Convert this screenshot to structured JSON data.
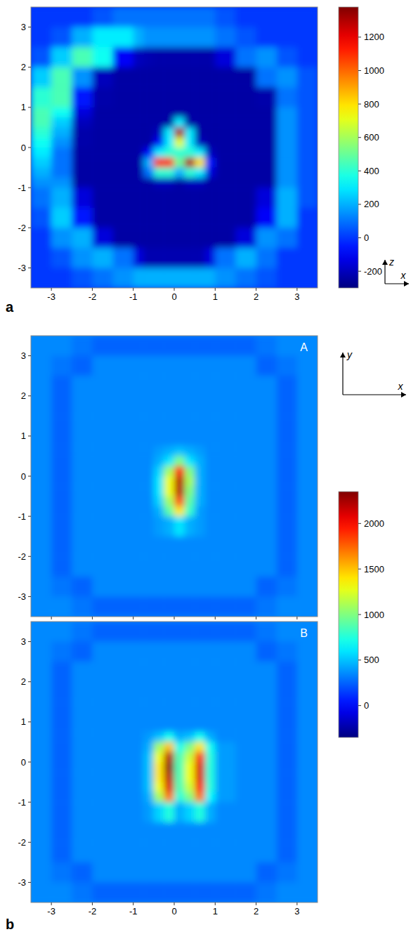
{
  "chart_data": [
    {
      "type": "heatmap",
      "panel_label": "a",
      "x_label": "x",
      "y_label": "z",
      "xlim": [
        -3.5,
        3.5
      ],
      "ylim": [
        -3.5,
        3.5
      ],
      "xticks": [
        -3,
        -2,
        -1,
        0,
        1,
        2,
        3
      ],
      "yticks": [
        -3,
        -2,
        -1,
        0,
        1,
        2,
        3
      ],
      "tick_labels": true,
      "x_edges": [
        -3.5,
        -3,
        -2.5,
        -2,
        -1.5,
        -1,
        -0.75,
        -0.5,
        -0.25,
        0,
        0.25,
        0.5,
        0.75,
        1,
        1.5,
        2,
        2.5,
        3,
        3.5
      ],
      "y_edges": [
        3.5,
        3,
        2.5,
        2,
        1.5,
        1,
        0.75,
        0.5,
        0.25,
        0,
        -0.25,
        -0.5,
        -0.75,
        -1,
        -1.5,
        -2,
        -2.5,
        -3,
        -3.5
      ],
      "values": [
        [
          0,
          0,
          0,
          50,
          100,
          100,
          100,
          100,
          100,
          100,
          100,
          100,
          100,
          50,
          0,
          0,
          0,
          0
        ],
        [
          0,
          50,
          200,
          300,
          300,
          200,
          150,
          150,
          150,
          150,
          150,
          150,
          150,
          100,
          50,
          0,
          0,
          0
        ],
        [
          50,
          250,
          450,
          350,
          -100,
          -200,
          -220,
          -230,
          -230,
          -230,
          -230,
          -230,
          -230,
          -150,
          100,
          150,
          50,
          0
        ],
        [
          250,
          450,
          150,
          -200,
          -240,
          -240,
          -240,
          -240,
          -240,
          -240,
          -240,
          -240,
          -240,
          -240,
          -240,
          100,
          150,
          50
        ],
        [
          400,
          450,
          -50,
          -230,
          -240,
          -240,
          -240,
          -240,
          -240,
          -240,
          -240,
          -240,
          -240,
          -240,
          -240,
          -230,
          100,
          50
        ],
        [
          450,
          350,
          -150,
          -240,
          -240,
          -240,
          -240,
          -240,
          -240,
          -240,
          -240,
          -240,
          -240,
          -240,
          -240,
          -240,
          150,
          50
        ],
        [
          450,
          250,
          -200,
          -240,
          -240,
          -240,
          -240,
          -240,
          -240,
          300,
          -240,
          -240,
          -240,
          -240,
          -240,
          -240,
          150,
          50
        ],
        [
          400,
          200,
          -230,
          -240,
          -240,
          -240,
          -240,
          -200,
          300,
          1300,
          300,
          -240,
          -240,
          -240,
          -240,
          -240,
          150,
          50
        ],
        [
          350,
          150,
          -230,
          -240,
          -240,
          -240,
          -240,
          -100,
          300,
          700,
          300,
          -200,
          -240,
          -240,
          -240,
          -240,
          150,
          50
        ],
        [
          300,
          100,
          -240,
          -240,
          -240,
          -240,
          -100,
          300,
          400,
          400,
          400,
          300,
          -200,
          -240,
          -240,
          -240,
          150,
          50
        ],
        [
          250,
          100,
          -240,
          -240,
          -240,
          -240,
          200,
          1100,
          1100,
          500,
          1300,
          800,
          -50,
          -240,
          -240,
          -240,
          150,
          50
        ],
        [
          200,
          100,
          -240,
          -240,
          -240,
          -240,
          100,
          400,
          400,
          200,
          400,
          300,
          -150,
          -240,
          -240,
          -240,
          150,
          50
        ],
        [
          150,
          150,
          -240,
          -240,
          -240,
          -240,
          -240,
          -200,
          -200,
          -240,
          -200,
          -200,
          -240,
          -240,
          -240,
          -240,
          150,
          50
        ],
        [
          100,
          200,
          -150,
          -240,
          -240,
          -240,
          -240,
          -240,
          -240,
          -240,
          -240,
          -240,
          -240,
          -240,
          -240,
          -150,
          200,
          50
        ],
        [
          50,
          250,
          -50,
          -240,
          -240,
          -240,
          -240,
          -240,
          -240,
          -240,
          -240,
          -240,
          -240,
          -240,
          -240,
          -100,
          200,
          0
        ],
        [
          0,
          150,
          200,
          -150,
          -240,
          -240,
          -240,
          -240,
          -240,
          -240,
          -240,
          -240,
          -240,
          -240,
          -150,
          150,
          100,
          0
        ],
        [
          0,
          50,
          150,
          200,
          100,
          -150,
          -220,
          -220,
          -220,
          -220,
          -220,
          -220,
          -150,
          100,
          200,
          100,
          0,
          0
        ],
        [
          0,
          0,
          50,
          100,
          150,
          200,
          200,
          200,
          200,
          200,
          200,
          200,
          200,
          150,
          100,
          50,
          0,
          0
        ]
      ],
      "colorbar": {
        "range": [
          -300,
          1380
        ],
        "ticks": [
          -200,
          0,
          200,
          400,
          600,
          800,
          1000,
          1200
        ]
      }
    },
    {
      "type": "heatmap",
      "title": "A",
      "panel_label": "b",
      "x_label": "x",
      "y_label": "y",
      "xlim": [
        -3.5,
        3.5
      ],
      "ylim": [
        -3.5,
        3.5
      ],
      "xticks": [
        -3,
        -2,
        -1,
        0,
        1,
        2,
        3
      ],
      "yticks": [
        -3,
        -2,
        -1,
        0,
        1,
        2,
        3
      ],
      "tick_labels": "y",
      "x_edges": [
        -3.5,
        -3,
        -2.5,
        -2,
        -1.5,
        -1,
        -0.75,
        -0.5,
        -0.25,
        0,
        0.25,
        0.5,
        0.75,
        1,
        1.5,
        2,
        2.5,
        3,
        3.5
      ],
      "y_edges": [
        3.5,
        3,
        2.5,
        2,
        1.5,
        1,
        0.75,
        0.5,
        0.25,
        0,
        -0.25,
        -0.5,
        -0.75,
        -1,
        -1.5,
        -2,
        -2.5,
        -3,
        -3.5
      ],
      "values": [
        [
          350,
          350,
          300,
          250,
          250,
          250,
          250,
          250,
          250,
          250,
          250,
          250,
          250,
          250,
          250,
          300,
          350,
          350
        ],
        [
          350,
          300,
          250,
          350,
          350,
          350,
          350,
          350,
          350,
          350,
          350,
          350,
          350,
          350,
          350,
          250,
          300,
          350
        ],
        [
          350,
          250,
          350,
          350,
          350,
          350,
          350,
          350,
          350,
          350,
          350,
          350,
          350,
          350,
          350,
          350,
          250,
          350
        ],
        [
          350,
          250,
          350,
          350,
          350,
          350,
          350,
          350,
          350,
          350,
          350,
          350,
          350,
          350,
          350,
          350,
          250,
          350
        ],
        [
          350,
          250,
          350,
          350,
          350,
          350,
          350,
          350,
          350,
          350,
          350,
          350,
          350,
          350,
          350,
          350,
          250,
          350
        ],
        [
          350,
          250,
          350,
          350,
          350,
          350,
          350,
          350,
          350,
          350,
          350,
          350,
          350,
          350,
          350,
          350,
          250,
          350
        ],
        [
          350,
          250,
          350,
          350,
          350,
          350,
          350,
          400,
          450,
          500,
          450,
          400,
          350,
          350,
          350,
          350,
          250,
          350
        ],
        [
          350,
          250,
          350,
          350,
          350,
          350,
          350,
          450,
          600,
          1000,
          600,
          450,
          350,
          350,
          350,
          350,
          250,
          350
        ],
        [
          350,
          250,
          350,
          350,
          350,
          350,
          350,
          550,
          1100,
          2000,
          1000,
          450,
          350,
          350,
          350,
          350,
          250,
          350
        ],
        [
          350,
          250,
          350,
          350,
          350,
          350,
          350,
          600,
          1300,
          2200,
          1100,
          450,
          350,
          350,
          350,
          350,
          250,
          350
        ],
        [
          350,
          250,
          350,
          350,
          350,
          350,
          350,
          600,
          1300,
          2200,
          1000,
          450,
          350,
          350,
          350,
          350,
          250,
          350
        ],
        [
          350,
          250,
          350,
          350,
          350,
          350,
          350,
          550,
          1100,
          1800,
          900,
          450,
          350,
          350,
          350,
          350,
          250,
          350
        ],
        [
          350,
          250,
          350,
          350,
          350,
          350,
          350,
          450,
          900,
          1400,
          800,
          400,
          350,
          350,
          350,
          350,
          250,
          350
        ],
        [
          350,
          250,
          350,
          350,
          350,
          350,
          350,
          400,
          450,
          600,
          450,
          400,
          350,
          350,
          350,
          350,
          250,
          350
        ],
        [
          350,
          250,
          350,
          350,
          350,
          350,
          350,
          350,
          350,
          350,
          350,
          350,
          350,
          350,
          350,
          350,
          250,
          350
        ],
        [
          350,
          250,
          350,
          350,
          350,
          350,
          350,
          350,
          350,
          350,
          350,
          350,
          350,
          350,
          350,
          350,
          250,
          350
        ],
        [
          350,
          300,
          250,
          350,
          350,
          350,
          350,
          350,
          350,
          350,
          350,
          350,
          350,
          350,
          350,
          250,
          300,
          350
        ],
        [
          350,
          350,
          300,
          250,
          250,
          250,
          250,
          250,
          250,
          250,
          250,
          250,
          250,
          250,
          250,
          300,
          350,
          350
        ]
      ],
      "colorbar": {
        "range": [
          -350,
          2350
        ],
        "ticks": [
          0,
          500,
          1000,
          1500,
          2000
        ]
      }
    },
    {
      "type": "heatmap",
      "title": "B",
      "xlim": [
        -3.5,
        3.5
      ],
      "ylim": [
        -3.5,
        3.5
      ],
      "xticks": [
        -3,
        -2,
        -1,
        0,
        1,
        2,
        3
      ],
      "yticks": [
        -3,
        -2,
        -1,
        0,
        1,
        2,
        3
      ],
      "tick_labels": true,
      "x_edges": [
        -3.5,
        -3,
        -2.5,
        -2,
        -1.5,
        -1,
        -0.75,
        -0.5,
        -0.25,
        0,
        0.25,
        0.5,
        0.75,
        1,
        1.5,
        2,
        2.5,
        3,
        3.5
      ],
      "y_edges": [
        3.5,
        3,
        2.5,
        2,
        1.5,
        1,
        0.75,
        0.5,
        0.25,
        0,
        -0.25,
        -0.5,
        -0.75,
        -1,
        -1.5,
        -2,
        -2.5,
        -3,
        -3.5
      ],
      "values": [
        [
          350,
          350,
          300,
          250,
          250,
          250,
          250,
          250,
          250,
          250,
          250,
          250,
          250,
          250,
          250,
          300,
          350,
          350
        ],
        [
          350,
          300,
          250,
          350,
          350,
          350,
          350,
          350,
          350,
          350,
          350,
          350,
          350,
          350,
          350,
          250,
          300,
          350
        ],
        [
          350,
          250,
          350,
          350,
          350,
          350,
          350,
          350,
          350,
          350,
          350,
          350,
          350,
          350,
          350,
          350,
          250,
          350
        ],
        [
          350,
          250,
          350,
          350,
          350,
          350,
          350,
          350,
          350,
          350,
          350,
          350,
          350,
          350,
          350,
          350,
          250,
          350
        ],
        [
          350,
          250,
          350,
          350,
          350,
          350,
          350,
          350,
          350,
          350,
          350,
          350,
          350,
          350,
          350,
          350,
          250,
          350
        ],
        [
          350,
          250,
          350,
          350,
          350,
          350,
          350,
          350,
          350,
          350,
          350,
          350,
          350,
          350,
          350,
          350,
          250,
          350
        ],
        [
          350,
          250,
          350,
          350,
          350,
          350,
          400,
          500,
          700,
          450,
          500,
          700,
          450,
          350,
          350,
          350,
          250,
          350
        ],
        [
          350,
          250,
          350,
          350,
          350,
          350,
          450,
          1100,
          1500,
          700,
          1000,
          1400,
          700,
          400,
          350,
          350,
          250,
          350
        ],
        [
          350,
          250,
          350,
          350,
          350,
          350,
          500,
          1300,
          2200,
          850,
          1200,
          1900,
          750,
          400,
          350,
          350,
          250,
          350
        ],
        [
          350,
          250,
          350,
          350,
          350,
          350,
          500,
          1400,
          2300,
          850,
          1300,
          2100,
          750,
          400,
          350,
          350,
          250,
          350
        ],
        [
          350,
          250,
          350,
          350,
          350,
          350,
          500,
          1400,
          2200,
          850,
          1300,
          2100,
          750,
          400,
          350,
          350,
          250,
          350
        ],
        [
          350,
          250,
          350,
          350,
          350,
          350,
          500,
          1300,
          2100,
          850,
          1200,
          2000,
          750,
          400,
          350,
          350,
          250,
          350
        ],
        [
          350,
          250,
          350,
          350,
          350,
          350,
          450,
          1100,
          1700,
          750,
          1000,
          1700,
          650,
          400,
          350,
          350,
          250,
          350
        ],
        [
          350,
          250,
          350,
          350,
          350,
          350,
          400,
          550,
          750,
          450,
          550,
          750,
          450,
          350,
          350,
          350,
          250,
          350
        ],
        [
          350,
          250,
          350,
          350,
          350,
          350,
          350,
          350,
          350,
          350,
          350,
          350,
          350,
          350,
          350,
          350,
          250,
          350
        ],
        [
          350,
          250,
          350,
          350,
          350,
          350,
          350,
          350,
          350,
          350,
          350,
          350,
          350,
          350,
          350,
          350,
          250,
          350
        ],
        [
          350,
          300,
          250,
          350,
          350,
          350,
          350,
          350,
          350,
          350,
          350,
          350,
          350,
          350,
          350,
          250,
          300,
          350
        ],
        [
          350,
          350,
          300,
          250,
          250,
          250,
          250,
          250,
          250,
          250,
          250,
          250,
          250,
          250,
          250,
          300,
          350,
          350
        ]
      ]
    }
  ]
}
